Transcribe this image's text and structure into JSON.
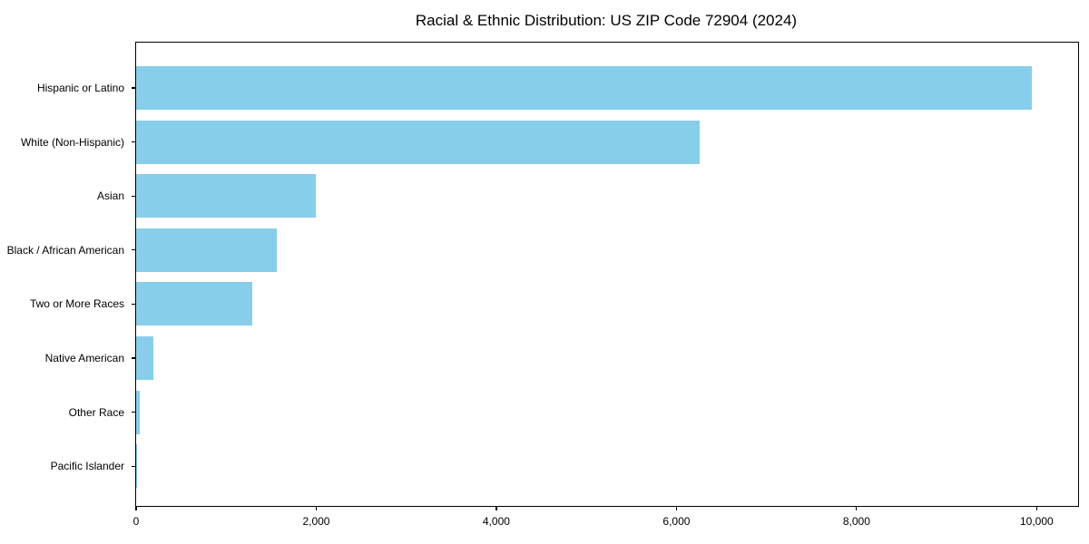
{
  "chart_data": {
    "type": "bar",
    "orientation": "horizontal",
    "title": "Racial & Ethnic Distribution: US ZIP Code 72904 (2024)",
    "categories": [
      "Hispanic or Latino",
      "White (Non-Hispanic)",
      "Asian",
      "Black / African American",
      "Two or More Races",
      "Native American",
      "Other Race",
      "Pacific Islander"
    ],
    "values": [
      9950,
      6260,
      2000,
      1560,
      1290,
      190,
      45,
      10
    ],
    "xlabel": "",
    "ylabel": "",
    "xlim": [
      0,
      10460
    ],
    "xticks": [
      0,
      2000,
      4000,
      6000,
      8000,
      10000
    ],
    "xtick_labels": [
      "0",
      "2,000",
      "4,000",
      "6,000",
      "8,000",
      "10,000"
    ],
    "bar_color": "#87CEEB",
    "axis_color": "#000000",
    "text_color": "#000000",
    "background": "#FFFFFF",
    "grid": false,
    "legend_position": "none"
  }
}
